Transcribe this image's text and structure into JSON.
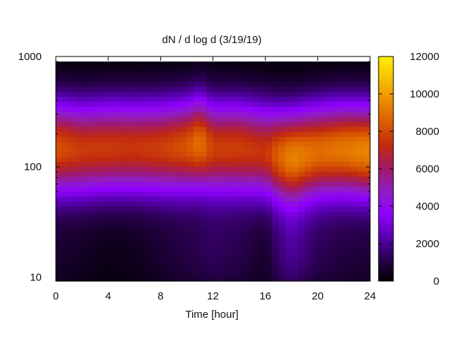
{
  "chart_data": {
    "type": "heatmap",
    "title": "dN / d log d (3/19/19)",
    "xlabel": "Time [hour]",
    "ylabel": "",
    "xlim": [
      0,
      24
    ],
    "ylim": [
      9.2,
      1000
    ],
    "y_data_range": [
      9.2,
      900
    ],
    "y_scale": "log",
    "x_ticks": [
      0,
      4,
      8,
      12,
      16,
      20,
      24
    ],
    "x_tick_labels": [
      "0",
      "4",
      "8",
      "12",
      "16",
      "20",
      "24"
    ],
    "y_ticks": [
      10,
      100,
      1000
    ],
    "y_tick_labels": [
      "10",
      "100",
      "1000"
    ],
    "colorbar": {
      "range": [
        0,
        12000
      ],
      "ticks": [
        0,
        2000,
        4000,
        6000,
        8000,
        10000,
        12000
      ],
      "tick_labels": [
        "0",
        "2000",
        "4000",
        "6000",
        "8000",
        "10000",
        "12000"
      ],
      "palette": [
        "#000000",
        "#2a0050",
        "#5a00b4",
        "#9000ff",
        "#8f1dc4",
        "#a01a6a",
        "#c02810",
        "#da5a00",
        "#eb8a00",
        "#f6c000",
        "#ffee00"
      ]
    },
    "peak_diameter_by_hour": {
      "hour": [
        0,
        2,
        4,
        6,
        8,
        10,
        11,
        12,
        14,
        16,
        17,
        18,
        20,
        22,
        24
      ],
      "peak_d": [
        150,
        145,
        150,
        150,
        150,
        155,
        165,
        150,
        150,
        140,
        130,
        125,
        140,
        145,
        140
      ]
    },
    "peak_value_by_hour": {
      "hour": [
        0,
        2,
        4,
        6,
        8,
        10,
        11,
        12,
        14,
        16,
        17,
        18,
        20,
        22,
        24
      ],
      "value": [
        8200,
        7600,
        7600,
        7500,
        7700,
        8200,
        9000,
        7700,
        7700,
        7400,
        8500,
        9400,
        8800,
        9100,
        9500
      ]
    },
    "background_by_hour": {
      "hour": [
        0,
        2,
        4,
        6,
        8,
        10,
        12,
        14,
        16,
        17,
        18,
        20,
        22,
        24
      ],
      "value": [
        700,
        500,
        300,
        400,
        700,
        1000,
        1300,
        1100,
        600,
        1500,
        2000,
        1200,
        900,
        800
      ]
    }
  }
}
